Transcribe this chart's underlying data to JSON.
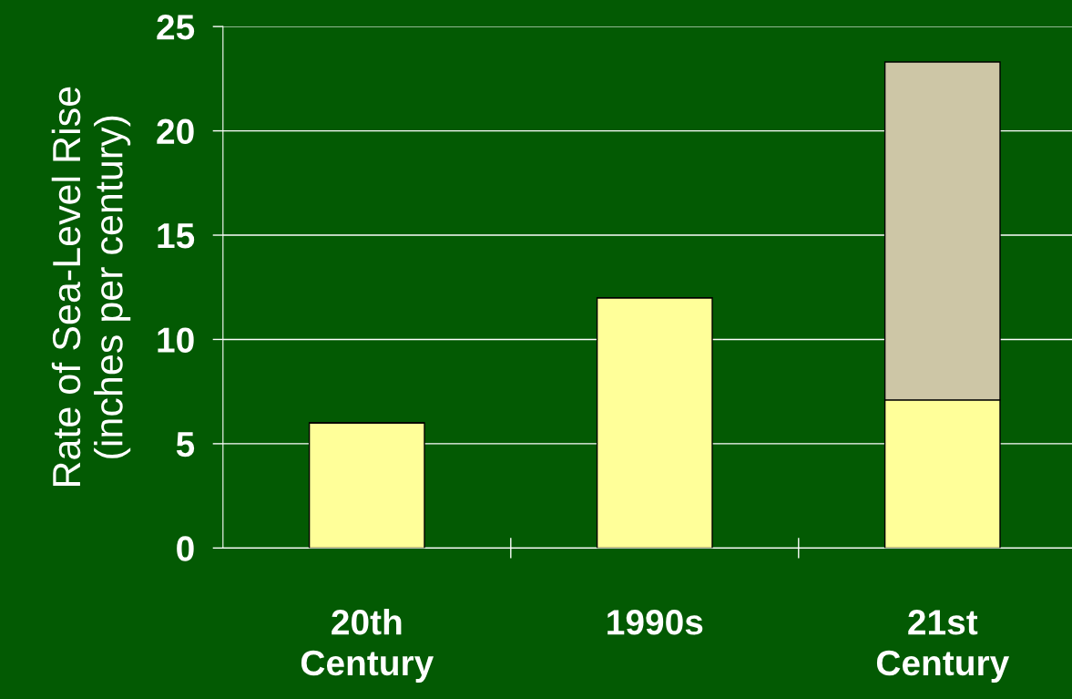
{
  "chart_data": {
    "type": "bar",
    "stacked": true,
    "categories": [
      "20th\nCentury",
      "1990s",
      "21st\nCentury"
    ],
    "series": [
      {
        "color": "#ffff99",
        "values": [
          6,
          12,
          7.1
        ]
      },
      {
        "color": "#cdc6a6",
        "values": [
          null,
          null,
          16.2
        ]
      }
    ],
    "ylabel": "Rate of Sea-Level Rise\n(inches per century)",
    "ylim": [
      0,
      25
    ],
    "yticks": [
      0,
      5,
      10,
      15,
      20,
      25
    ],
    "grid": "y"
  }
}
